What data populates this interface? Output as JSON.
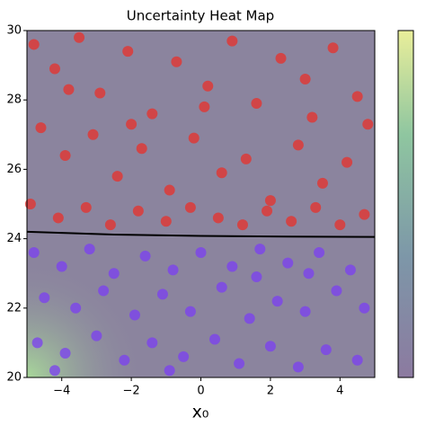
{
  "chart_data": {
    "type": "scatter",
    "title": "Uncertainty Heat Map",
    "xlabel": "x₀",
    "xlim": [
      -5,
      5
    ],
    "ylim": [
      20,
      30
    ],
    "xticks": [
      {
        "value": -4,
        "label": "−4"
      },
      {
        "value": -2,
        "label": "−2"
      },
      0,
      2,
      4
    ],
    "yticks": [
      20,
      22,
      24,
      26,
      28,
      30
    ],
    "series": [
      {
        "color": "#e8302a",
        "x": [
          -4.8,
          -4.2,
          -3.5,
          -2.9,
          -2.1,
          -1.4,
          -0.7,
          0.2,
          0.9,
          1.6,
          2.3,
          3.0,
          3.8,
          4.5,
          -4.6,
          -3.9,
          -3.1,
          -2.4,
          -1.7,
          -0.9,
          -0.2,
          0.6,
          1.3,
          2.0,
          2.8,
          3.5,
          4.2,
          4.8,
          -4.9,
          -4.1,
          -3.3,
          -2.6,
          -1.8,
          -1.0,
          -0.3,
          0.5,
          1.2,
          1.9,
          2.6,
          3.3,
          4.0,
          4.7,
          -2.0,
          0.1,
          3.2,
          -3.8
        ],
        "y": [
          29.6,
          28.9,
          29.8,
          28.2,
          29.4,
          27.6,
          29.1,
          28.4,
          29.7,
          27.9,
          29.2,
          28.6,
          29.5,
          28.1,
          27.2,
          26.4,
          27.0,
          25.8,
          26.6,
          25.4,
          26.9,
          25.9,
          26.3,
          25.1,
          26.7,
          25.6,
          26.2,
          27.3,
          25.0,
          24.6,
          24.9,
          24.4,
          24.8,
          24.5,
          24.9,
          24.6,
          24.4,
          24.8,
          24.5,
          24.9,
          24.4,
          24.7,
          27.3,
          27.8,
          27.5,
          28.3
        ]
      },
      {
        "color": "#7b3ff2",
        "x": [
          -4.8,
          -4.0,
          -3.2,
          -2.5,
          -1.6,
          -0.8,
          0.0,
          0.9,
          1.7,
          2.5,
          3.4,
          4.3,
          -4.5,
          -3.6,
          -2.8,
          -1.9,
          -1.1,
          -0.3,
          0.6,
          1.4,
          2.2,
          3.0,
          3.9,
          4.7,
          -4.7,
          -3.9,
          -3.0,
          -2.2,
          -1.4,
          -0.5,
          0.4,
          1.1,
          2.0,
          2.8,
          3.6,
          4.5,
          -4.2,
          -0.9,
          1.6,
          3.1
        ],
        "y": [
          23.6,
          23.2,
          23.7,
          23.0,
          23.5,
          23.1,
          23.6,
          23.2,
          23.7,
          23.3,
          23.6,
          23.1,
          22.3,
          22.0,
          22.5,
          21.8,
          22.4,
          21.9,
          22.6,
          21.7,
          22.2,
          21.9,
          22.5,
          22.0,
          21.0,
          20.7,
          21.2,
          20.5,
          21.0,
          20.6,
          21.1,
          20.4,
          20.9,
          20.3,
          20.8,
          20.5,
          20.2,
          20.2,
          22.9,
          23.0
        ]
      }
    ],
    "boundary": {
      "color": "#000000",
      "x": [
        -5,
        -2.5,
        0,
        2.5,
        5
      ],
      "y": [
        24.2,
        24.12,
        24.08,
        24.06,
        24.05
      ]
    }
  }
}
